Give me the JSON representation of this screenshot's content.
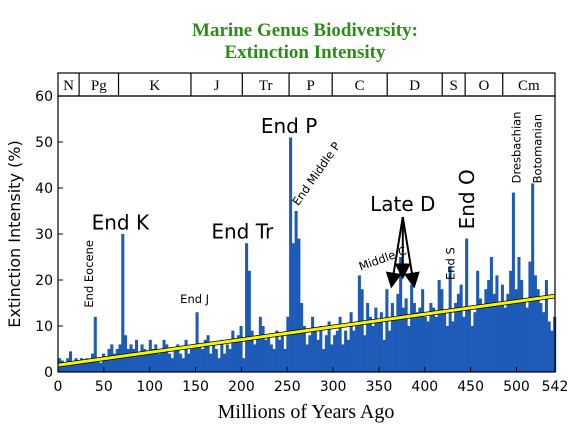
{
  "chart_data": {
    "type": "bar",
    "title": "Marine Genus Biodiversity:",
    "subtitle": "Extinction Intensity",
    "title_color": "#2e8b1a",
    "bar_color": "#1e5bb8",
    "trend_color": "#f5f500",
    "xlabel": "Millions of Years Ago",
    "ylabel": "Extinction Intensity (%)",
    "xlim": [
      0,
      542
    ],
    "ylim": [
      0,
      60
    ],
    "x_ticks": [
      0,
      50,
      100,
      150,
      200,
      250,
      300,
      350,
      400,
      450,
      500,
      542
    ],
    "y_ticks": [
      0,
      10,
      20,
      30,
      40,
      50,
      60
    ],
    "grid": false,
    "periods": [
      {
        "label": "N",
        "start": 0,
        "end": 23
      },
      {
        "label": "Pg",
        "start": 23,
        "end": 66
      },
      {
        "label": "K",
        "start": 66,
        "end": 145
      },
      {
        "label": "J",
        "start": 145,
        "end": 201
      },
      {
        "label": "Tr",
        "start": 201,
        "end": 252
      },
      {
        "label": "P",
        "start": 252,
        "end": 299
      },
      {
        "label": "C",
        "start": 299,
        "end": 359
      },
      {
        "label": "D",
        "start": 359,
        "end": 419
      },
      {
        "label": "S",
        "start": 419,
        "end": 444
      },
      {
        "label": "O",
        "start": 444,
        "end": 485
      },
      {
        "label": "Cm",
        "start": 485,
        "end": 542
      }
    ],
    "x": [
      0,
      3,
      6,
      9,
      12,
      15,
      18,
      21,
      24,
      27,
      30,
      33,
      36,
      39,
      42,
      45,
      48,
      51,
      54,
      57,
      60,
      63,
      66,
      69,
      72,
      75,
      78,
      81,
      84,
      87,
      90,
      93,
      96,
      99,
      102,
      105,
      108,
      111,
      114,
      117,
      120,
      123,
      126,
      129,
      132,
      135,
      138,
      141,
      144,
      147,
      150,
      153,
      156,
      159,
      162,
      165,
      168,
      171,
      174,
      177,
      180,
      183,
      186,
      189,
      192,
      195,
      198,
      201,
      204,
      207,
      210,
      213,
      216,
      219,
      222,
      225,
      228,
      231,
      234,
      237,
      240,
      243,
      246,
      249,
      252,
      255,
      258,
      261,
      264,
      267,
      270,
      273,
      276,
      279,
      282,
      285,
      288,
      291,
      294,
      297,
      300,
      303,
      306,
      309,
      312,
      315,
      318,
      321,
      324,
      327,
      330,
      333,
      336,
      339,
      342,
      345,
      348,
      351,
      354,
      357,
      360,
      363,
      366,
      369,
      372,
      375,
      378,
      381,
      384,
      387,
      390,
      393,
      396,
      399,
      402,
      405,
      408,
      411,
      414,
      417,
      420,
      423,
      426,
      429,
      432,
      435,
      438,
      441,
      444,
      447,
      450,
      453,
      456,
      459,
      462,
      465,
      468,
      471,
      474,
      477,
      480,
      483,
      486,
      489,
      492,
      495,
      498,
      501,
      504,
      507,
      510,
      513,
      516,
      519,
      522,
      525,
      528,
      531,
      534,
      537,
      540
    ],
    "values": [
      3,
      2.5,
      2,
      3,
      4.5,
      2,
      3,
      2.5,
      3,
      2,
      3,
      2.5,
      4,
      12,
      3,
      2,
      4,
      3,
      5,
      6,
      4,
      5,
      6,
      30,
      8,
      5,
      6,
      5,
      7,
      4,
      6,
      5,
      4,
      7,
      5,
      6,
      4,
      5,
      7,
      6,
      4,
      3,
      5,
      6,
      4,
      3,
      7,
      4,
      5,
      6,
      13,
      6,
      5,
      7,
      8,
      4,
      6,
      5,
      3,
      7,
      4,
      6,
      5,
      9,
      7,
      8,
      10,
      3,
      28,
      22,
      9,
      6,
      8,
      12,
      10,
      7,
      8,
      6,
      5,
      9,
      7,
      8,
      5,
      12,
      51,
      28,
      35,
      29,
      15,
      10,
      6,
      8,
      12,
      9,
      7,
      10,
      5,
      8,
      11,
      6,
      8,
      9,
      12,
      6,
      9,
      7,
      13,
      9,
      10,
      21,
      18,
      8,
      15,
      12,
      10,
      14,
      11,
      13,
      7,
      18,
      9,
      15,
      12,
      17,
      25,
      14,
      16,
      10,
      19,
      15,
      13,
      14,
      18,
      12,
      11,
      15,
      14,
      12,
      20,
      18,
      13,
      10,
      23,
      11,
      15,
      17,
      19,
      12,
      29,
      14,
      10,
      13,
      22,
      16,
      14,
      18,
      20,
      25,
      17,
      21,
      15,
      19,
      14,
      17,
      22,
      39,
      18,
      25,
      20,
      16,
      14,
      24,
      41,
      21,
      18,
      15,
      13,
      20,
      11,
      9,
      12
    ],
    "annotations": [
      {
        "text": "End K",
        "x": 68,
        "y": 31,
        "size": "large",
        "rotate": false
      },
      {
        "text": "End Tr",
        "x": 201,
        "y": 29,
        "size": "large",
        "rotate": false
      },
      {
        "text": "End P",
        "x": 252,
        "y": 52,
        "size": "large",
        "rotate": false
      },
      {
        "text": "Late D",
        "x": 376,
        "y": 35,
        "size": "large",
        "rotate": false
      },
      {
        "text": "End O",
        "x": 446,
        "y": 31,
        "size": "large",
        "rotate": true
      },
      {
        "text": "End Eocene",
        "x": 34,
        "y": 14,
        "size": "small",
        "rotate": true
      },
      {
        "text": "End J",
        "x": 149,
        "y": 15,
        "size": "small",
        "rotate": false
      },
      {
        "text": "End Middle P",
        "x": 262,
        "y": 36,
        "size": "small",
        "rotate": "diag"
      },
      {
        "text": "Middle C",
        "x": 330,
        "y": 22,
        "size": "small",
        "rotate": "diag"
      },
      {
        "text": "End S",
        "x": 428,
        "y": 20,
        "size": "small",
        "rotate": true
      },
      {
        "text": "Dresbachian",
        "x": 500,
        "y": 41,
        "size": "small",
        "rotate": true
      },
      {
        "text": "Botomanian",
        "x": 523,
        "y": 41,
        "size": "small",
        "rotate": true
      }
    ],
    "trend_line": [
      [
        0,
        1.5
      ],
      [
        542,
        16.5
      ]
    ]
  }
}
